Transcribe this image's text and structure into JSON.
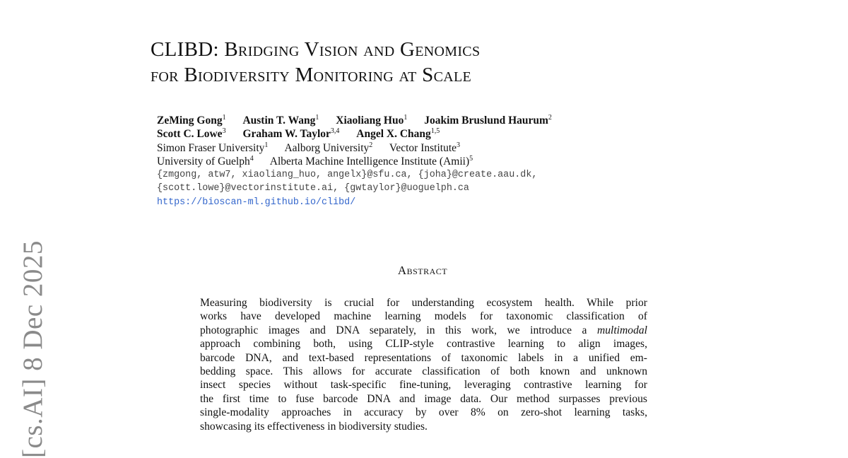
{
  "sidebar": {
    "arxiv_stamp": "[cs.AI]  8 Dec 2025"
  },
  "title": {
    "line1": "CLIBD: Bridging Vision and Genomics",
    "line2": "for Biodiversity Monitoring at Scale"
  },
  "authors": [
    {
      "name": "ZeMing Gong",
      "aff": "1"
    },
    {
      "name": "Austin T. Wang",
      "aff": "1"
    },
    {
      "name": "Xiaoliang Huo",
      "aff": "1"
    },
    {
      "name": "Joakim Bruslund Haurum",
      "aff": "2"
    },
    {
      "name": "Scott C. Lowe",
      "aff": "3"
    },
    {
      "name": "Graham W. Taylor",
      "aff": "3,4"
    },
    {
      "name": "Angel X. Chang",
      "aff": "1,5"
    }
  ],
  "affiliations": [
    {
      "name": "Simon Fraser University",
      "num": "1"
    },
    {
      "name": "Aalborg University",
      "num": "2"
    },
    {
      "name": "Vector Institute",
      "num": "3"
    },
    {
      "name": "University of Guelph",
      "num": "4"
    },
    {
      "name": "Alberta Machine Intelligence Institute (Amii)",
      "num": "5"
    }
  ],
  "emails": {
    "line1": "{zmgong, atw7, xiaoliang_huo, angelx}@sfu.ca, {joha}@create.aau.dk,",
    "line2": "{scott.lowe}@vectorinstitute.ai, {gwtaylor}@uoguelph.ca"
  },
  "project_url": "https://bioscan-ml.github.io/clibd/",
  "abstract": {
    "heading": "Abstract",
    "lines": [
      "Measuring biodiversity is crucial for understanding ecosystem health. While prior",
      "works have developed machine learning models for taxonomic classification of",
      "photographic images and DNA separately, in this work, we introduce a",
      "approach combining both, using CLIP-style contrastive learning to align images,",
      "barcode DNA, and text-based representations of taxonomic labels in a unified em-",
      "bedding space. This allows for accurate classification of both known and unknown",
      "insect species without task-specific fine-tuning, leveraging contrastive learning for",
      "the first time to fuse barcode DNA and image data. Our method surpasses previous",
      "single-modality approaches in accuracy by over 8% on zero-shot learning tasks,",
      "showcasing its effectiveness in biodiversity studies."
    ],
    "italic_word": "multimodal"
  }
}
